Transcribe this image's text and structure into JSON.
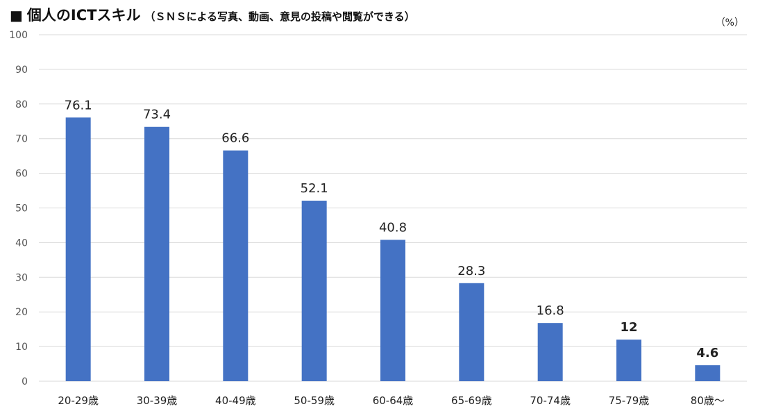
{
  "chart_data": {
    "type": "bar",
    "title_mark": "■",
    "title": "個人のICTスキル",
    "subtitle": "（ＳＮＳによる写真、動画、意見の投稿や閲覧ができる）",
    "unit": "（%）",
    "categories": [
      "20-29歳",
      "30-39歳",
      "40-49歳",
      "50-59歳",
      "60-64歳",
      "65-69歳",
      "70-74歳",
      "75-79歳",
      "80歳～"
    ],
    "values": [
      76.1,
      73.4,
      66.6,
      52.1,
      40.8,
      28.3,
      16.8,
      12,
      4.6
    ],
    "data_labels": [
      "76.1",
      "73.4",
      "66.6",
      "52.1",
      "40.8",
      "28.3",
      "16.8",
      "12",
      "4.6"
    ],
    "bold_labels": [
      false,
      false,
      false,
      false,
      false,
      false,
      false,
      true,
      true
    ],
    "ylim": [
      0,
      100
    ],
    "yticks": [
      0,
      10,
      20,
      30,
      40,
      50,
      60,
      70,
      80,
      90,
      100
    ],
    "grid": true,
    "bar_color": "#4472C4",
    "grid_color": "#D9D9D9"
  }
}
